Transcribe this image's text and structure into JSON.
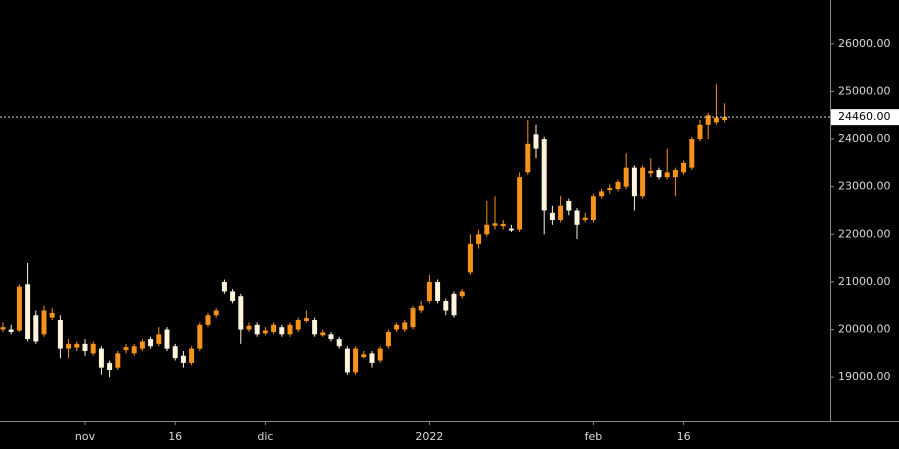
{
  "chart_data": {
    "type": "candlestick",
    "categories": [
      null,
      null,
      null,
      null,
      null,
      null,
      null,
      null,
      null,
      null,
      "nov",
      null,
      null,
      null,
      null,
      null,
      null,
      null,
      null,
      null,
      null,
      "16",
      null,
      null,
      null,
      null,
      null,
      null,
      null,
      null,
      null,
      null,
      "dic",
      null,
      null,
      null,
      null,
      null,
      null,
      null,
      null,
      null,
      null,
      null,
      null,
      null,
      null,
      null,
      null,
      null,
      null,
      null,
      "2022",
      null,
      null,
      null,
      null,
      null,
      null,
      null,
      null,
      null,
      null,
      null,
      null,
      null,
      null,
      null,
      null,
      null,
      null,
      null,
      "feb",
      null,
      null,
      null,
      null,
      null,
      null,
      null,
      null,
      null,
      null,
      "16",
      null,
      null,
      null,
      null,
      null
    ],
    "open": [
      20000,
      20000,
      19980,
      20950,
      20300,
      19900,
      20250,
      20200,
      19600,
      19620,
      19700,
      19500,
      19600,
      19300,
      19200,
      19570,
      19500,
      19600,
      19800,
      19700,
      20000,
      19650,
      19450,
      19300,
      19600,
      20100,
      20300,
      21000,
      20800,
      20700,
      20000,
      20100,
      19920,
      19950,
      20050,
      19900,
      20000,
      20180,
      20200,
      19880,
      19900,
      19800,
      19600,
      19100,
      19420,
      19500,
      19350,
      19650,
      20000,
      20000,
      20050,
      20400,
      20600,
      21000,
      20600,
      20750,
      20700,
      21200,
      21800,
      22000,
      22180,
      22170,
      22120,
      22100,
      23300,
      24100,
      24000,
      22450,
      22300,
      22700,
      22500,
      22300,
      22300,
      22800,
      22930,
      22950,
      23000,
      23400,
      22800,
      23280,
      23350,
      23200,
      23200,
      23300,
      23400,
      24000,
      24300,
      24350,
      24400
    ],
    "high": [
      20150,
      20100,
      20950,
      21400,
      20400,
      20500,
      20450,
      20300,
      19800,
      19750,
      19800,
      19750,
      19650,
      19350,
      19550,
      19700,
      19700,
      19800,
      19850,
      20050,
      20050,
      19700,
      19550,
      19650,
      20150,
      20350,
      20450,
      21050,
      20850,
      20750,
      20150,
      20150,
      20050,
      20150,
      20100,
      20150,
      20250,
      20400,
      20250,
      20000,
      19950,
      19850,
      19650,
      19650,
      19550,
      19550,
      19650,
      20000,
      20150,
      20200,
      20500,
      20600,
      21150,
      21050,
      20650,
      20800,
      20850,
      22000,
      22100,
      22700,
      22800,
      22300,
      22200,
      23300,
      24400,
      24300,
      24050,
      22600,
      22800,
      22750,
      22550,
      22450,
      22850,
      22950,
      23050,
      23150,
      23700,
      23450,
      23450,
      23600,
      23400,
      23800,
      23400,
      23550,
      24050,
      24400,
      24550,
      25150,
      24750
    ],
    "low": [
      19950,
      19900,
      19950,
      19750,
      19700,
      19850,
      20200,
      19400,
      19400,
      19550,
      19450,
      19450,
      19050,
      19000,
      19150,
      19500,
      19450,
      19550,
      19600,
      19650,
      19550,
      19350,
      19200,
      19250,
      19550,
      20050,
      20250,
      20750,
      20550,
      19700,
      19950,
      19850,
      19880,
      19900,
      19850,
      19850,
      19950,
      20150,
      19850,
      19850,
      19750,
      19600,
      19050,
      19050,
      19400,
      19200,
      19300,
      19600,
      19950,
      19950,
      20000,
      20350,
      20550,
      20550,
      20300,
      20250,
      20650,
      21150,
      21700,
      21950,
      22100,
      22100,
      22050,
      22050,
      23250,
      23600,
      22000,
      22200,
      22250,
      22400,
      21900,
      22250,
      22250,
      22750,
      22850,
      22900,
      22950,
      22500,
      22750,
      23200,
      23150,
      23150,
      22800,
      23250,
      23350,
      23950,
      24000,
      24300,
      24350
    ],
    "close": [
      20050,
      19950,
      20900,
      19800,
      19750,
      20400,
      20350,
      19600,
      19700,
      19700,
      19550,
      19700,
      19200,
      19150,
      19500,
      19630,
      19650,
      19750,
      19650,
      19900,
      19600,
      19400,
      19300,
      19600,
      20100,
      20300,
      20400,
      20800,
      20600,
      20000,
      20080,
      19900,
      19980,
      20100,
      19900,
      20100,
      20200,
      20240,
      19900,
      19940,
      19800,
      19650,
      19100,
      19600,
      19480,
      19300,
      19600,
      19950,
      20100,
      20150,
      20450,
      20500,
      21000,
      20600,
      20400,
      20300,
      20800,
      21800,
      22000,
      22200,
      22230,
      22220,
      22080,
      23200,
      23900,
      23800,
      22500,
      22300,
      22600,
      22500,
      22200,
      22350,
      22800,
      22900,
      22970,
      23100,
      23400,
      22800,
      23400,
      23330,
      23200,
      23300,
      23350,
      23500,
      24000,
      24300,
      24500,
      24450,
      24460
    ],
    "up_color": "#f7931a",
    "down_color": "#fff4dc",
    "ylim": [
      18080,
      26920
    ],
    "yticks": [
      {
        "value": 19000,
        "label": "19000.00"
      },
      {
        "value": 20000,
        "label": "20000.00"
      },
      {
        "value": 21000,
        "label": "21000.00"
      },
      {
        "value": 22000,
        "label": "22000.00"
      },
      {
        "value": 23000,
        "label": "23000.00"
      },
      {
        "value": 24000,
        "label": "24000.00"
      },
      {
        "value": 25000,
        "label": "25000.00"
      },
      {
        "value": 26000,
        "label": "26000.00"
      }
    ],
    "last_price": {
      "value": 24460,
      "label": "24460.00"
    }
  }
}
